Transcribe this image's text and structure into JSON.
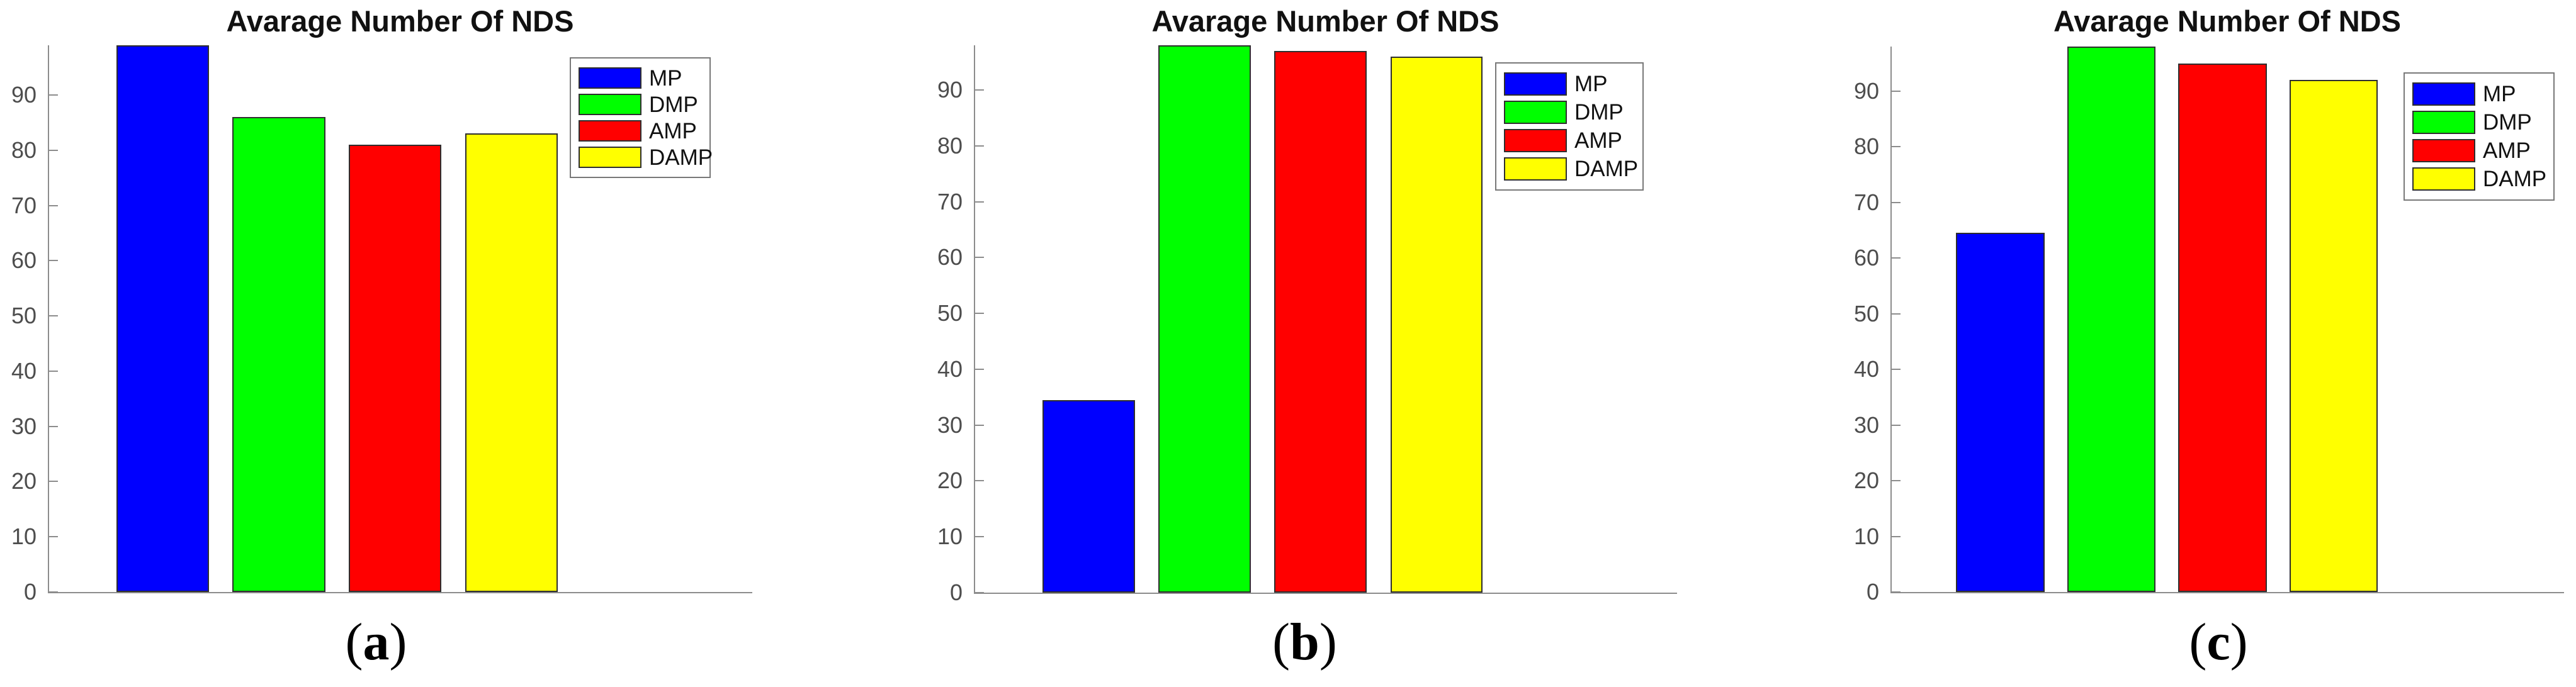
{
  "figure": {
    "background": "#ffffff",
    "colors": {
      "axis": "#8c8c8c",
      "tick_label": "#4d4d4d",
      "title": "#111111",
      "bar_edge": "#2e2e2e",
      "legend_border": "#787878",
      "legend_background": "#ffffff",
      "caption": "#000000"
    }
  },
  "chart_data": [
    {
      "type": "bar",
      "title": "Avarage Number Of NDS",
      "caption": "(a)",
      "categories": [
        "MP",
        "DMP",
        "AMP",
        "DAMP"
      ],
      "values": [
        99,
        86,
        81,
        83
      ],
      "bar_colors": [
        "#0000ff",
        "#00ff00",
        "#ff0000",
        "#ffff00"
      ],
      "xlabel": "",
      "ylabel": "",
      "ylim": [
        0,
        99
      ],
      "yticks": [
        0,
        10,
        20,
        30,
        40,
        50,
        60,
        70,
        80,
        90
      ],
      "grid": false,
      "legend": {
        "position": "upper right",
        "entries": [
          {
            "label": "MP",
            "color": "#0000ff"
          },
          {
            "label": "DMP",
            "color": "#00ff00"
          },
          {
            "label": "AMP",
            "color": "#ff0000"
          },
          {
            "label": "DAMP",
            "color": "#ffff00"
          }
        ]
      }
    },
    {
      "type": "bar",
      "title": "Avarage Number Of NDS",
      "caption": "(b)",
      "categories": [
        "MP",
        "DMP",
        "AMP",
        "DAMP"
      ],
      "values": [
        34.5,
        98,
        97,
        96
      ],
      "bar_colors": [
        "#0000ff",
        "#00ff00",
        "#ff0000",
        "#ffff00"
      ],
      "xlabel": "",
      "ylabel": "",
      "ylim": [
        0,
        98
      ],
      "yticks": [
        0,
        10,
        20,
        30,
        40,
        50,
        60,
        70,
        80,
        90
      ],
      "grid": false,
      "legend": {
        "position": "upper right",
        "entries": [
          {
            "label": "MP",
            "color": "#0000ff"
          },
          {
            "label": "DMP",
            "color": "#00ff00"
          },
          {
            "label": "AMP",
            "color": "#ff0000"
          },
          {
            "label": "DAMP",
            "color": "#ffff00"
          }
        ]
      }
    },
    {
      "type": "bar",
      "title": "Avarage Number Of NDS",
      "caption": "(c)",
      "categories": [
        "MP",
        "DMP",
        "AMP",
        "DAMP"
      ],
      "values": [
        64.5,
        98,
        95,
        92
      ],
      "bar_colors": [
        "#0000ff",
        "#00ff00",
        "#ff0000",
        "#ffff00"
      ],
      "xlabel": "",
      "ylabel": "",
      "ylim": [
        0,
        98
      ],
      "yticks": [
        0,
        10,
        20,
        30,
        40,
        50,
        60,
        70,
        80,
        90
      ],
      "grid": false,
      "legend": {
        "position": "upper right",
        "entries": [
          {
            "label": "MP",
            "color": "#0000ff"
          },
          {
            "label": "DMP",
            "color": "#00ff00"
          },
          {
            "label": "AMP",
            "color": "#ff0000"
          },
          {
            "label": "DAMP",
            "color": "#ffff00"
          }
        ]
      }
    }
  ]
}
